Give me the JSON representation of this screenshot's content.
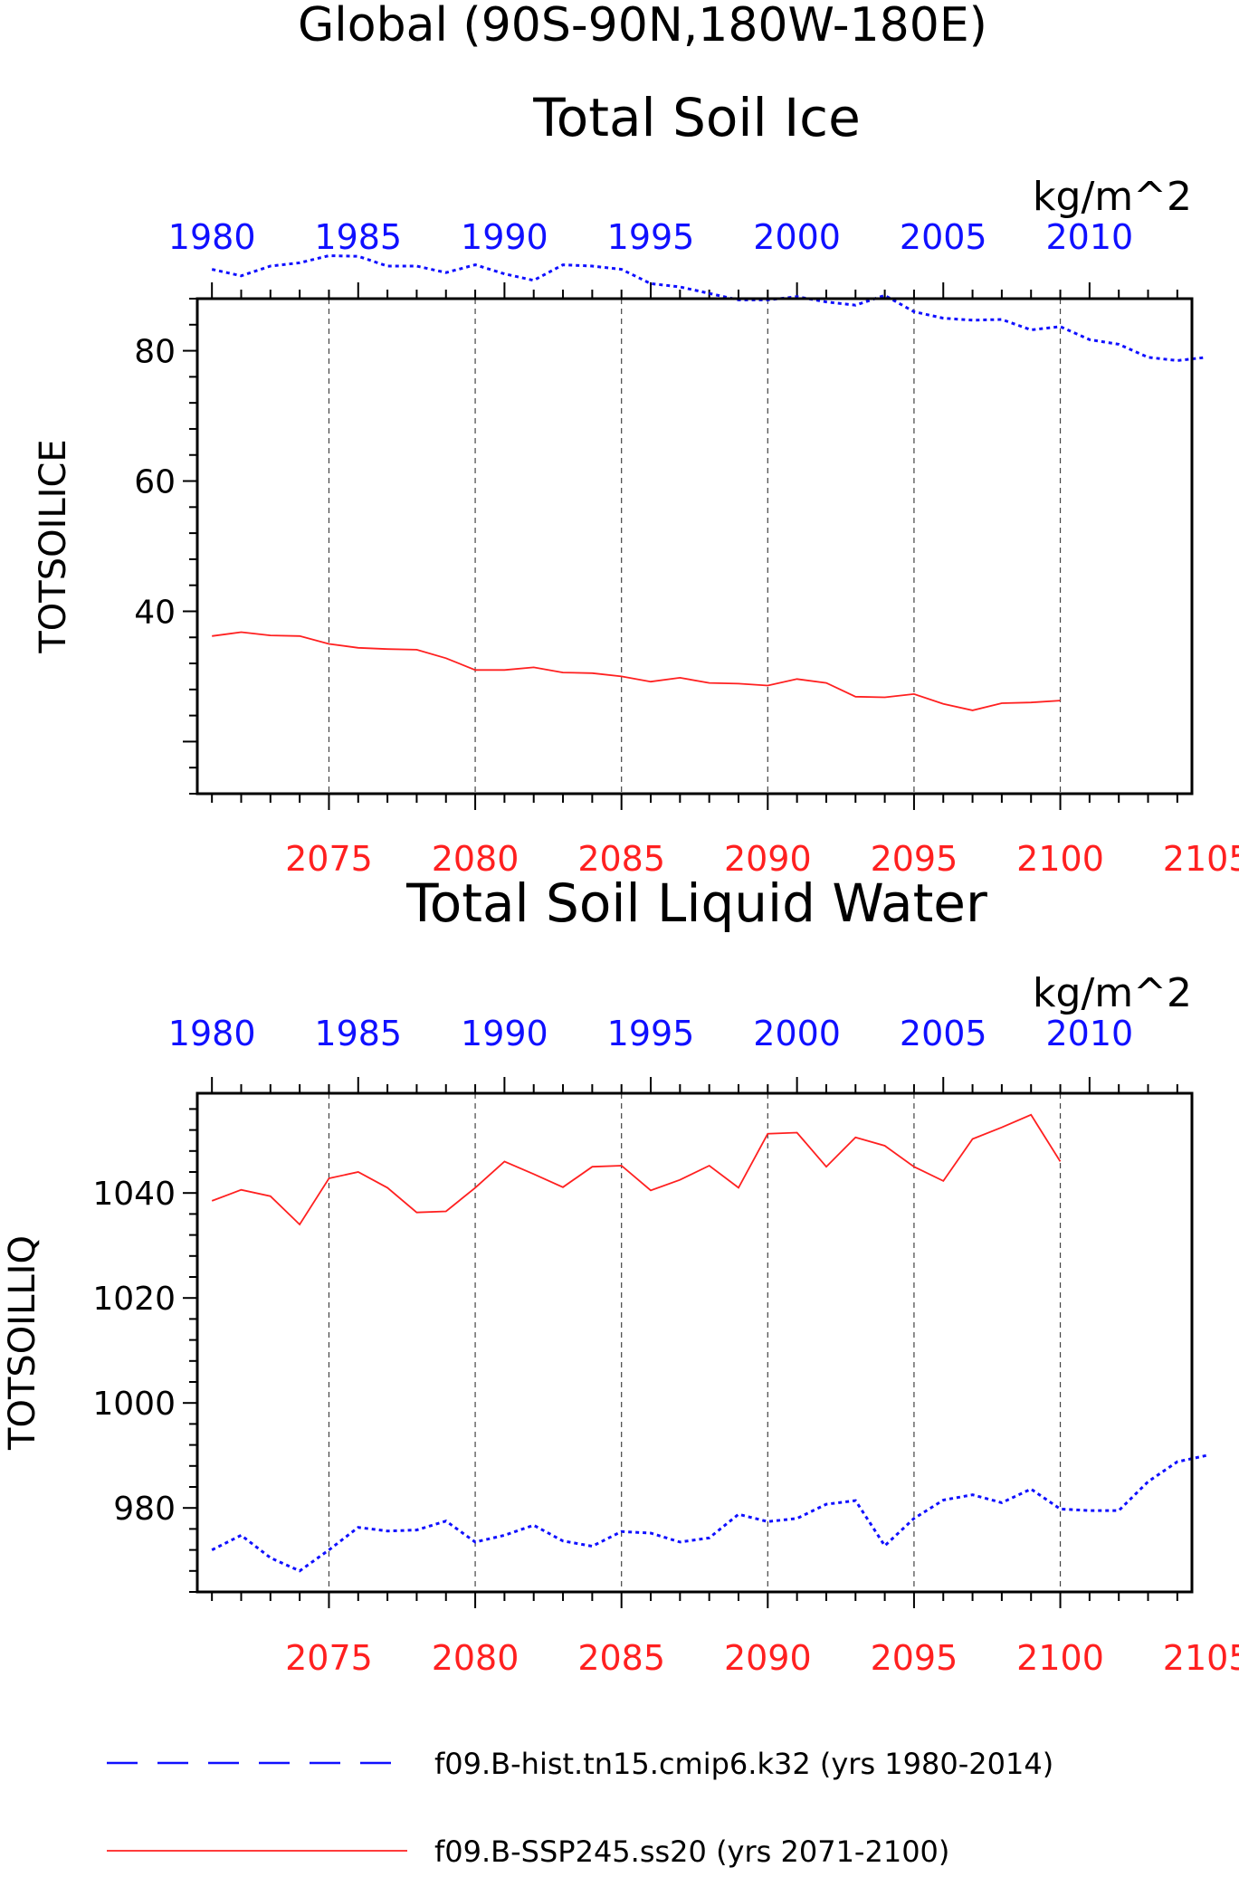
{
  "figure_title": "Global (90S-90N,180W-180E)",
  "chart_data": [
    {
      "type": "line",
      "title": "Total Soil Ice",
      "units": "kg/m^2",
      "ylabel": "TOTSOILICE",
      "ylim": [
        12,
        88
      ],
      "yticks": [
        40,
        60,
        80
      ],
      "top_axis": {
        "label_color": "#1010ff",
        "range": [
          1979.5,
          2013.5
        ],
        "ticks": [
          1980,
          1985,
          1990,
          1995,
          2000,
          2005,
          2010
        ]
      },
      "bottom_axis": {
        "label_color": "#ff2020",
        "range": [
          2070.5,
          2104.5
        ],
        "ticks": [
          2075,
          2080,
          2085,
          2090,
          2095,
          2100,
          2105
        ]
      },
      "grid": "vertical dashed at bottom-axis ticks",
      "series": [
        {
          "name": "f09.B-hist.tn15.cmip6.k32 (yrs 1980-2014)",
          "axis": "top",
          "color": "#1010ff",
          "style": "dashed",
          "x": [
            1980,
            1981,
            1982,
            1983,
            1984,
            1985,
            1986,
            1987,
            1988,
            1989,
            1990,
            1991,
            1992,
            1993,
            1994,
            1995,
            1996,
            1997,
            1998,
            1999,
            2000,
            2001,
            2002,
            2003,
            2004,
            2005,
            2006,
            2007,
            2008,
            2009,
            2010,
            2011,
            2012,
            2013,
            2014
          ],
          "values": [
            92.5,
            91.5,
            93.0,
            93.5,
            94.6,
            94.5,
            93.0,
            93.0,
            92.0,
            93.2,
            91.8,
            90.8,
            93.2,
            93.0,
            92.5,
            90.3,
            89.8,
            88.8,
            87.8,
            87.8,
            88.3,
            87.5,
            87.0,
            88.5,
            86.0,
            85.0,
            84.7,
            84.8,
            83.2,
            83.7,
            81.7,
            81.0,
            79.0,
            78.5,
            79.0
          ]
        },
        {
          "name": "f09.B-SSP245.ss20 (yrs 2071-2100)",
          "axis": "bottom",
          "color": "#ff2020",
          "style": "solid",
          "x": [
            2071,
            2072,
            2073,
            2074,
            2075,
            2076,
            2077,
            2078,
            2079,
            2080,
            2081,
            2082,
            2083,
            2084,
            2085,
            2086,
            2087,
            2088,
            2089,
            2090,
            2091,
            2092,
            2093,
            2094,
            2095,
            2096,
            2097,
            2098,
            2099,
            2100
          ],
          "values": [
            36.2,
            36.8,
            36.3,
            36.2,
            35.0,
            34.4,
            34.2,
            34.1,
            32.8,
            31.0,
            31.0,
            31.4,
            30.6,
            30.5,
            30.0,
            29.2,
            29.8,
            29.0,
            28.9,
            28.6,
            29.6,
            29.0,
            26.9,
            26.8,
            27.3,
            25.8,
            24.8,
            25.9,
            26.0,
            26.3
          ]
        }
      ]
    },
    {
      "type": "line",
      "title": "Total Soil Liquid Water",
      "units": "kg/m^2",
      "ylabel": "TOTSOILLIQ",
      "ylim": [
        964,
        1059
      ],
      "yticks": [
        980,
        1000,
        1020,
        1040
      ],
      "top_axis": {
        "label_color": "#1010ff",
        "range": [
          1979.5,
          2013.5
        ],
        "ticks": [
          1980,
          1985,
          1990,
          1995,
          2000,
          2005,
          2010
        ]
      },
      "bottom_axis": {
        "label_color": "#ff2020",
        "range": [
          2070.5,
          2104.5
        ],
        "ticks": [
          2075,
          2080,
          2085,
          2090,
          2095,
          2100,
          2105
        ]
      },
      "grid": "vertical dashed at bottom-axis ticks",
      "series": [
        {
          "name": "f09.B-hist.tn15.cmip6.k32 (yrs 1980-2014)",
          "axis": "top",
          "color": "#1010ff",
          "style": "dashed",
          "x": [
            1980,
            1981,
            1982,
            1983,
            1984,
            1985,
            1986,
            1987,
            1988,
            1989,
            1990,
            1991,
            1992,
            1993,
            1994,
            1995,
            1996,
            1997,
            1998,
            1999,
            2000,
            2001,
            2002,
            2003,
            2004,
            2005,
            2006,
            2007,
            2008,
            2009,
            2010,
            2011,
            2012,
            2013,
            2014
          ],
          "values": [
            972.0,
            974.8,
            970.5,
            968.0,
            972.0,
            976.3,
            975.6,
            975.8,
            977.5,
            973.5,
            974.8,
            976.7,
            973.7,
            972.7,
            975.5,
            975.2,
            973.5,
            974.3,
            978.8,
            977.4,
            978.0,
            980.7,
            981.4,
            972.8,
            978.0,
            981.5,
            982.5,
            981.0,
            983.6,
            979.8,
            979.5,
            979.5,
            985.0,
            988.8,
            990.0
          ]
        },
        {
          "name": "f09.B-SSP245.ss20 (yrs 2071-2100)",
          "axis": "bottom",
          "color": "#ff2020",
          "style": "solid",
          "x": [
            2071,
            2072,
            2073,
            2074,
            2075,
            2076,
            2077,
            2078,
            2079,
            2080,
            2081,
            2082,
            2083,
            2084,
            2085,
            2086,
            2087,
            2088,
            2089,
            2090,
            2091,
            2092,
            2093,
            2094,
            2095,
            2096,
            2097,
            2098,
            2099,
            2100
          ],
          "values": [
            1038.5,
            1040.6,
            1039.4,
            1034.0,
            1042.8,
            1044.0,
            1041.0,
            1036.3,
            1036.5,
            1041.0,
            1046.0,
            1043.6,
            1041.1,
            1045.0,
            1045.2,
            1040.5,
            1042.5,
            1045.2,
            1041.0,
            1051.3,
            1051.5,
            1045.0,
            1050.6,
            1049.0,
            1045.0,
            1042.3,
            1050.3,
            1052.5,
            1054.9,
            1046.0
          ]
        }
      ]
    }
  ],
  "legend": [
    {
      "label": "f09.B-hist.tn15.cmip6.k32 (yrs 1980-2014)",
      "color": "#1010ff",
      "style": "dashed"
    },
    {
      "label": "f09.B-SSP245.ss20 (yrs 2071-2100)",
      "color": "#ff2020",
      "style": "solid"
    }
  ]
}
